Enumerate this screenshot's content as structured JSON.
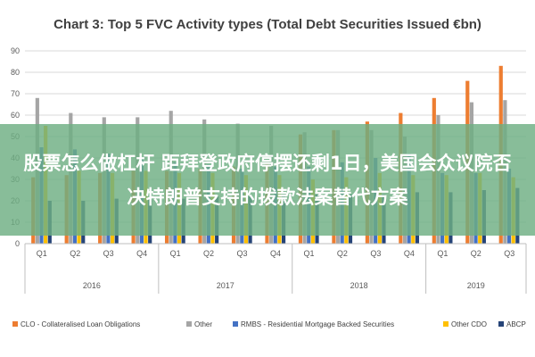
{
  "overlay_text": "股票怎么做杠杆 距拜登政府停摆还剩1日，美国会众议院否决特朗普支持的拨款法案替代方案",
  "chart_data": {
    "type": "bar",
    "title": "Chart 3: Top 5 FVC Activity types (Total Debt Securities Issued €bn)",
    "xlabel": "",
    "ylabel": "",
    "ylim": [
      0,
      90
    ],
    "yticks": [
      0,
      10,
      20,
      30,
      40,
      50,
      60,
      70,
      80,
      90
    ],
    "grid": true,
    "legend_position": "bottom",
    "categories": [
      "Q1",
      "Q2",
      "Q3",
      "Q4",
      "Q1",
      "Q2",
      "Q3",
      "Q4",
      "Q1",
      "Q2",
      "Q3",
      "Q4",
      "Q1",
      "Q2",
      "Q3"
    ],
    "groups": [
      {
        "label": "2016",
        "quarters": 4
      },
      {
        "label": "2017",
        "quarters": 4
      },
      {
        "label": "2018",
        "quarters": 4
      },
      {
        "label": "2019",
        "quarters": 3
      }
    ],
    "series": [
      {
        "name": "CLO - Collateralised Loan Obligations",
        "color": "#ED7D31",
        "values": [
          31,
          32,
          33,
          34,
          34,
          35,
          36,
          38,
          51,
          53,
          57,
          61,
          68,
          76,
          83
        ]
      },
      {
        "name": "Other",
        "color": "#A5A5A5",
        "values": [
          68,
          61,
          59,
          59,
          62,
          58,
          56,
          55,
          52,
          53,
          53,
          50,
          60,
          66,
          67
        ]
      },
      {
        "name": "RMBS - Residential Mortgage Backed Securities",
        "color": "#4472C4",
        "values": [
          45,
          44,
          42,
          40,
          38,
          37,
          35,
          36,
          36,
          38,
          40,
          42,
          33,
          33,
          35
        ]
      },
      {
        "name": "Other CDO",
        "color": "#FFC000",
        "values": [
          55,
          34,
          33,
          34,
          33,
          33,
          32,
          32,
          30,
          31,
          33,
          32,
          32,
          33,
          31
        ]
      },
      {
        "name": "ABCP",
        "color": "#264478",
        "values": [
          20,
          20,
          21,
          21,
          21,
          22,
          22,
          23,
          23,
          23,
          23,
          24,
          24,
          25,
          26
        ]
      }
    ]
  }
}
